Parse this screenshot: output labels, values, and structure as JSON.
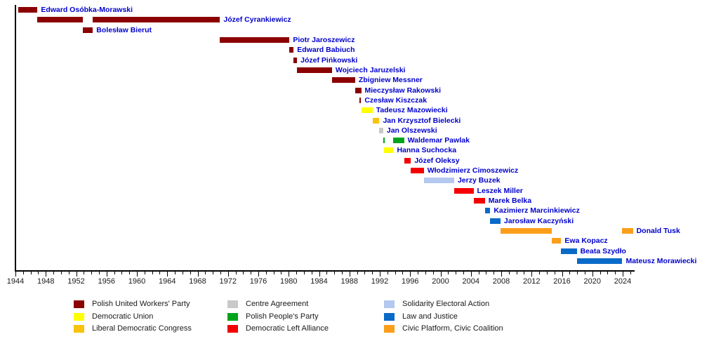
{
  "chart_data": {
    "type": "bar",
    "subtype": "timeline-gantt",
    "title": "",
    "legend_position": "bottom",
    "colors": {
      "background": "#FFFFFF",
      "name_label": "#0000CC",
      "axis_line": "#000000",
      "axis_text": "#1A1A1A",
      "legend_text": "#1A1A1A"
    },
    "axis": {
      "start": 1944,
      "end": 2025.35,
      "major_tick_years": [
        1944,
        1948,
        1952,
        1956,
        1960,
        1964,
        1968,
        1972,
        1976,
        1980,
        1984,
        1988,
        1992,
        1996,
        2000,
        2004,
        2008,
        2012,
        2016,
        2020,
        2024
      ],
      "minor_tick_step": 1,
      "minor_tick_last": 2025
    },
    "parties": {
      "pzpr": {
        "label": "Polish United Workers' Party",
        "color": "#8B0000"
      },
      "ud": {
        "label": "Democratic Union",
        "color": "#FFFF00"
      },
      "kld": {
        "label": "Liberal Democratic Congress",
        "color": "#F8C20D"
      },
      "pc": {
        "label": "Centre Agreement",
        "color": "#C9C9C9"
      },
      "psl": {
        "label": "Polish People's Party",
        "color": "#00A41C"
      },
      "sld": {
        "label": "Democratic Left Alliance",
        "color": "#F40000"
      },
      "aws": {
        "label": "Solidarity Electoral Action",
        "color": "#B4C8F0"
      },
      "pis": {
        "label": "Law and Justice",
        "color": "#0A6AC8"
      },
      "po": {
        "label": "Civic Platform, Civic Coalition",
        "color": "#FB9E1B"
      }
    },
    "legend_order": [
      "pzpr",
      "ud",
      "kld",
      "pc",
      "psl",
      "sld",
      "aws",
      "pis",
      "po"
    ],
    "people": [
      {
        "name": "Edward Osóbka-Morawski",
        "party": "pzpr",
        "segments": [
          [
            1944.4,
            1946.9
          ]
        ]
      },
      {
        "name": "Józef Cyrankiewicz",
        "party": "pzpr",
        "segments": [
          [
            1946.9,
            1952.85
          ],
          [
            1954.2,
            1970.95
          ]
        ]
      },
      {
        "name": "Bolesław Bierut",
        "party": "pzpr",
        "segments": [
          [
            1952.85,
            1954.2
          ]
        ]
      },
      {
        "name": "Piotr Jaroszewicz",
        "party": "pzpr",
        "segments": [
          [
            1970.95,
            1980.1
          ]
        ]
      },
      {
        "name": "Edward Babiuch",
        "party": "pzpr",
        "segments": [
          [
            1980.1,
            1980.65
          ]
        ]
      },
      {
        "name": "Józef Pińkowski",
        "party": "pzpr",
        "segments": [
          [
            1980.65,
            1981.1
          ]
        ]
      },
      {
        "name": "Wojciech Jaruzelski",
        "party": "pzpr",
        "segments": [
          [
            1981.1,
            1985.7
          ]
        ]
      },
      {
        "name": "Zbigniew Messner",
        "party": "pzpr",
        "segments": [
          [
            1985.7,
            1988.75
          ]
        ]
      },
      {
        "name": "Mieczysław Rakowski",
        "party": "pzpr",
        "segments": [
          [
            1988.75,
            1989.55
          ]
        ]
      },
      {
        "name": "Czesław Kiszczak",
        "party": "pzpr",
        "segments": [
          [
            1989.35,
            1989.5
          ]
        ]
      },
      {
        "name": "Tadeusz Mazowiecki",
        "party": "ud",
        "segments": [
          [
            1989.6,
            1991.05
          ]
        ]
      },
      {
        "name": "Jan Krzysztof Bielecki",
        "party": "kld",
        "segments": [
          [
            1991.05,
            1991.95
          ]
        ]
      },
      {
        "name": "Jan Olszewski",
        "party": "pc",
        "segments": [
          [
            1991.95,
            1992.45
          ]
        ]
      },
      {
        "name": "Waldemar Pawlak",
        "party": "psl",
        "segments": [
          [
            1992.45,
            1992.6
          ],
          [
            1993.8,
            1995.2
          ]
        ]
      },
      {
        "name": "Hanna Suchocka",
        "party": "ud",
        "segments": [
          [
            1992.55,
            1993.8
          ]
        ]
      },
      {
        "name": "Józef Oleksy",
        "party": "sld",
        "segments": [
          [
            1995.2,
            1996.1
          ]
        ]
      },
      {
        "name": "Włodzimierz Cimoszewicz",
        "party": "sld",
        "segments": [
          [
            1996.1,
            1997.8
          ]
        ]
      },
      {
        "name": "Jerzy Buzek",
        "party": "aws",
        "segments": [
          [
            1997.8,
            2001.8
          ]
        ]
      },
      {
        "name": "Leszek Miller",
        "party": "sld",
        "segments": [
          [
            2001.8,
            2004.35
          ]
        ]
      },
      {
        "name": "Marek Belka",
        "party": "sld",
        "segments": [
          [
            2004.35,
            2005.85
          ]
        ]
      },
      {
        "name": "Kazimierz Marcinkiewicz",
        "party": "pis",
        "segments": [
          [
            2005.85,
            2006.55
          ]
        ]
      },
      {
        "name": "Jarosław Kaczyński",
        "party": "pis",
        "segments": [
          [
            2006.55,
            2007.9
          ]
        ]
      },
      {
        "name": "Donald Tusk",
        "party": "po",
        "segments": [
          [
            2007.9,
            2014.7
          ],
          [
            2023.95,
            2025.35
          ]
        ]
      },
      {
        "name": "Ewa Kopacz",
        "party": "po",
        "segments": [
          [
            2014.7,
            2015.9
          ]
        ]
      },
      {
        "name": "Beata Szydło",
        "party": "pis",
        "segments": [
          [
            2015.9,
            2017.95
          ]
        ]
      },
      {
        "name": "Mateusz Morawiecki",
        "party": "pis",
        "segments": [
          [
            2017.95,
            2023.95
          ]
        ]
      }
    ]
  }
}
